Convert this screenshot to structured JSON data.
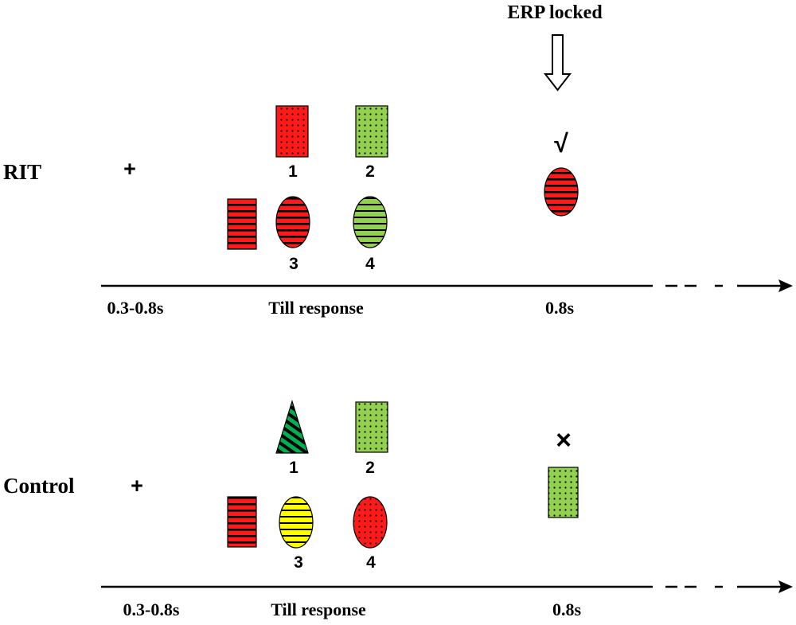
{
  "header": {
    "erp_label": "ERP locked"
  },
  "conditions": [
    {
      "label": "RIT",
      "fixation": "+",
      "options": [
        "1",
        "2",
        "3",
        "4"
      ],
      "feedback_symbol": "√",
      "timeline_labels": [
        "0.3-0.8s",
        "Till response",
        "0.8s"
      ]
    },
    {
      "label": "Control",
      "fixation": "+",
      "options": [
        "1",
        "2",
        "3",
        "4"
      ],
      "feedback_symbol": "×",
      "timeline_labels": [
        "0.3-0.8s",
        "Till response",
        "0.8s"
      ]
    }
  ],
  "colors": {
    "red": "#ff1a1a",
    "green": "#92d050",
    "dark_green": "#00b050",
    "yellow": "#ffff00"
  }
}
